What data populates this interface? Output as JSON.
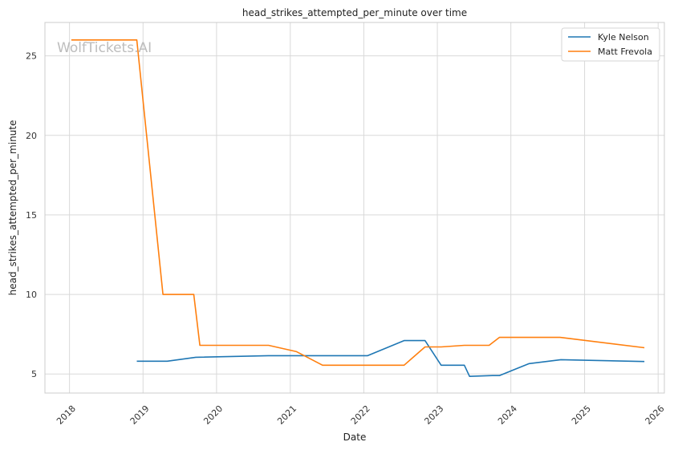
{
  "chart_data": {
    "type": "line",
    "title": "head_strikes_attempted_per_minute over time",
    "xlabel": "Date",
    "ylabel": "head_strikes_attempted_per_minute",
    "watermark": "WolfTickets.AI",
    "xlim": [
      "2017-09-01",
      "2026-02-01"
    ],
    "ylim": [
      3.8,
      27.1
    ],
    "x_ticks": [
      "2018",
      "2019",
      "2020",
      "2021",
      "2022",
      "2023",
      "2024",
      "2025",
      "2026"
    ],
    "y_ticks": [
      5,
      10,
      15,
      20,
      25
    ],
    "grid": true,
    "legend_position": "top-right",
    "series": [
      {
        "name": "Kyle Nelson",
        "color": "#1f77b4",
        "points": [
          [
            "2018-12-01",
            5.8
          ],
          [
            "2019-05-01",
            5.8
          ],
          [
            "2019-09-20",
            6.05
          ],
          [
            "2020-09-15",
            6.15
          ],
          [
            "2022-01-20",
            6.15
          ],
          [
            "2022-07-20",
            7.1
          ],
          [
            "2022-11-01",
            7.1
          ],
          [
            "2023-01-20",
            5.55
          ],
          [
            "2023-05-15",
            5.55
          ],
          [
            "2023-06-10",
            4.85
          ],
          [
            "2023-10-01",
            4.9
          ],
          [
            "2023-11-05",
            4.9
          ],
          [
            "2024-04-01",
            5.65
          ],
          [
            "2024-09-05",
            5.9
          ],
          [
            "2025-10-25",
            5.78
          ]
        ]
      },
      {
        "name": "Matt Frevola",
        "color": "#ff7f0e",
        "points": [
          [
            "2018-01-10",
            26.0
          ],
          [
            "2018-12-01",
            26.0
          ],
          [
            "2019-04-10",
            10.0
          ],
          [
            "2019-09-10",
            10.0
          ],
          [
            "2019-10-10",
            6.8
          ],
          [
            "2020-09-15",
            6.8
          ],
          [
            "2021-02-01",
            6.4
          ],
          [
            "2021-06-10",
            5.55
          ],
          [
            "2022-07-20",
            5.55
          ],
          [
            "2022-11-01",
            6.7
          ],
          [
            "2023-01-20",
            6.7
          ],
          [
            "2023-05-15",
            6.8
          ],
          [
            "2023-09-15",
            6.8
          ],
          [
            "2023-11-05",
            7.3
          ],
          [
            "2024-09-01",
            7.3
          ],
          [
            "2025-10-25",
            6.65
          ]
        ]
      }
    ]
  }
}
